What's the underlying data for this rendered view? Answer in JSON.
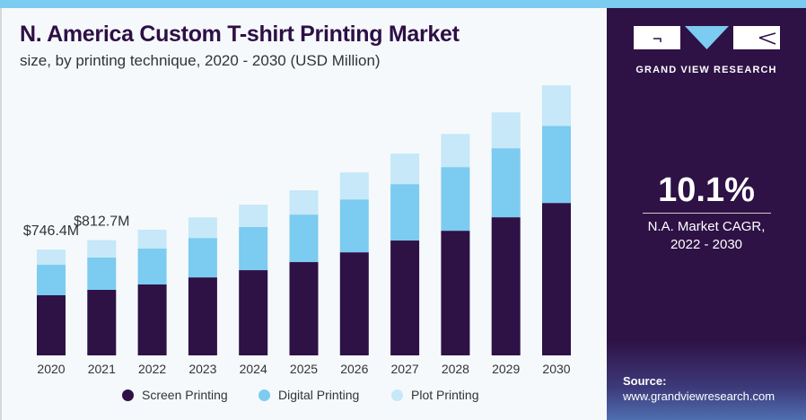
{
  "header": {
    "title": "N. America Custom T-shirt Printing Market",
    "subtitle": "size, by printing technique, 2020 - 2030 (USD Million)"
  },
  "side": {
    "brand": "GRAND VIEW RESEARCH",
    "cagr_value": "10.1%",
    "cagr_label_1": "N.A. Market CAGR,",
    "cagr_label_2": "2022 - 2030",
    "source_label": "Source:",
    "source_url": "www.grandviewresearch.com"
  },
  "colors": {
    "screen": "#2e1145",
    "digital": "#7ccbf0",
    "plot": "#c6e8f8",
    "accent": "#7ccbf0"
  },
  "chart_data": {
    "type": "bar",
    "stacked": true,
    "title": "N. America Custom T-shirt Printing Market",
    "subtitle": "size, by printing technique, 2020 - 2030 (USD Million)",
    "categories": [
      "2020",
      "2021",
      "2022",
      "2023",
      "2024",
      "2025",
      "2026",
      "2027",
      "2028",
      "2029",
      "2030"
    ],
    "series": [
      {
        "name": "Screen Printing",
        "color": "#2e1145",
        "values": [
          424,
          462,
          500,
          550,
          601,
          658,
          727,
          810,
          879,
          974,
          1075
        ]
      },
      {
        "name": "Digital Printing",
        "color": "#7ccbf0",
        "values": [
          215,
          228,
          253,
          278,
          304,
          335,
          373,
          398,
          449,
          487,
          544
        ]
      },
      {
        "name": "Plot Printing",
        "color": "#c6e8f8",
        "values": [
          107.4,
          122.7,
          133,
          145,
          158,
          171,
          190,
          215,
          234,
          253,
          285
        ]
      }
    ],
    "annotations": [
      {
        "category": "2020",
        "text": "$746.4M"
      },
      {
        "category": "2021",
        "text": "$812.7M"
      }
    ],
    "ylim": [
      0,
      2000
    ],
    "grid": false,
    "legend": "bottom"
  }
}
